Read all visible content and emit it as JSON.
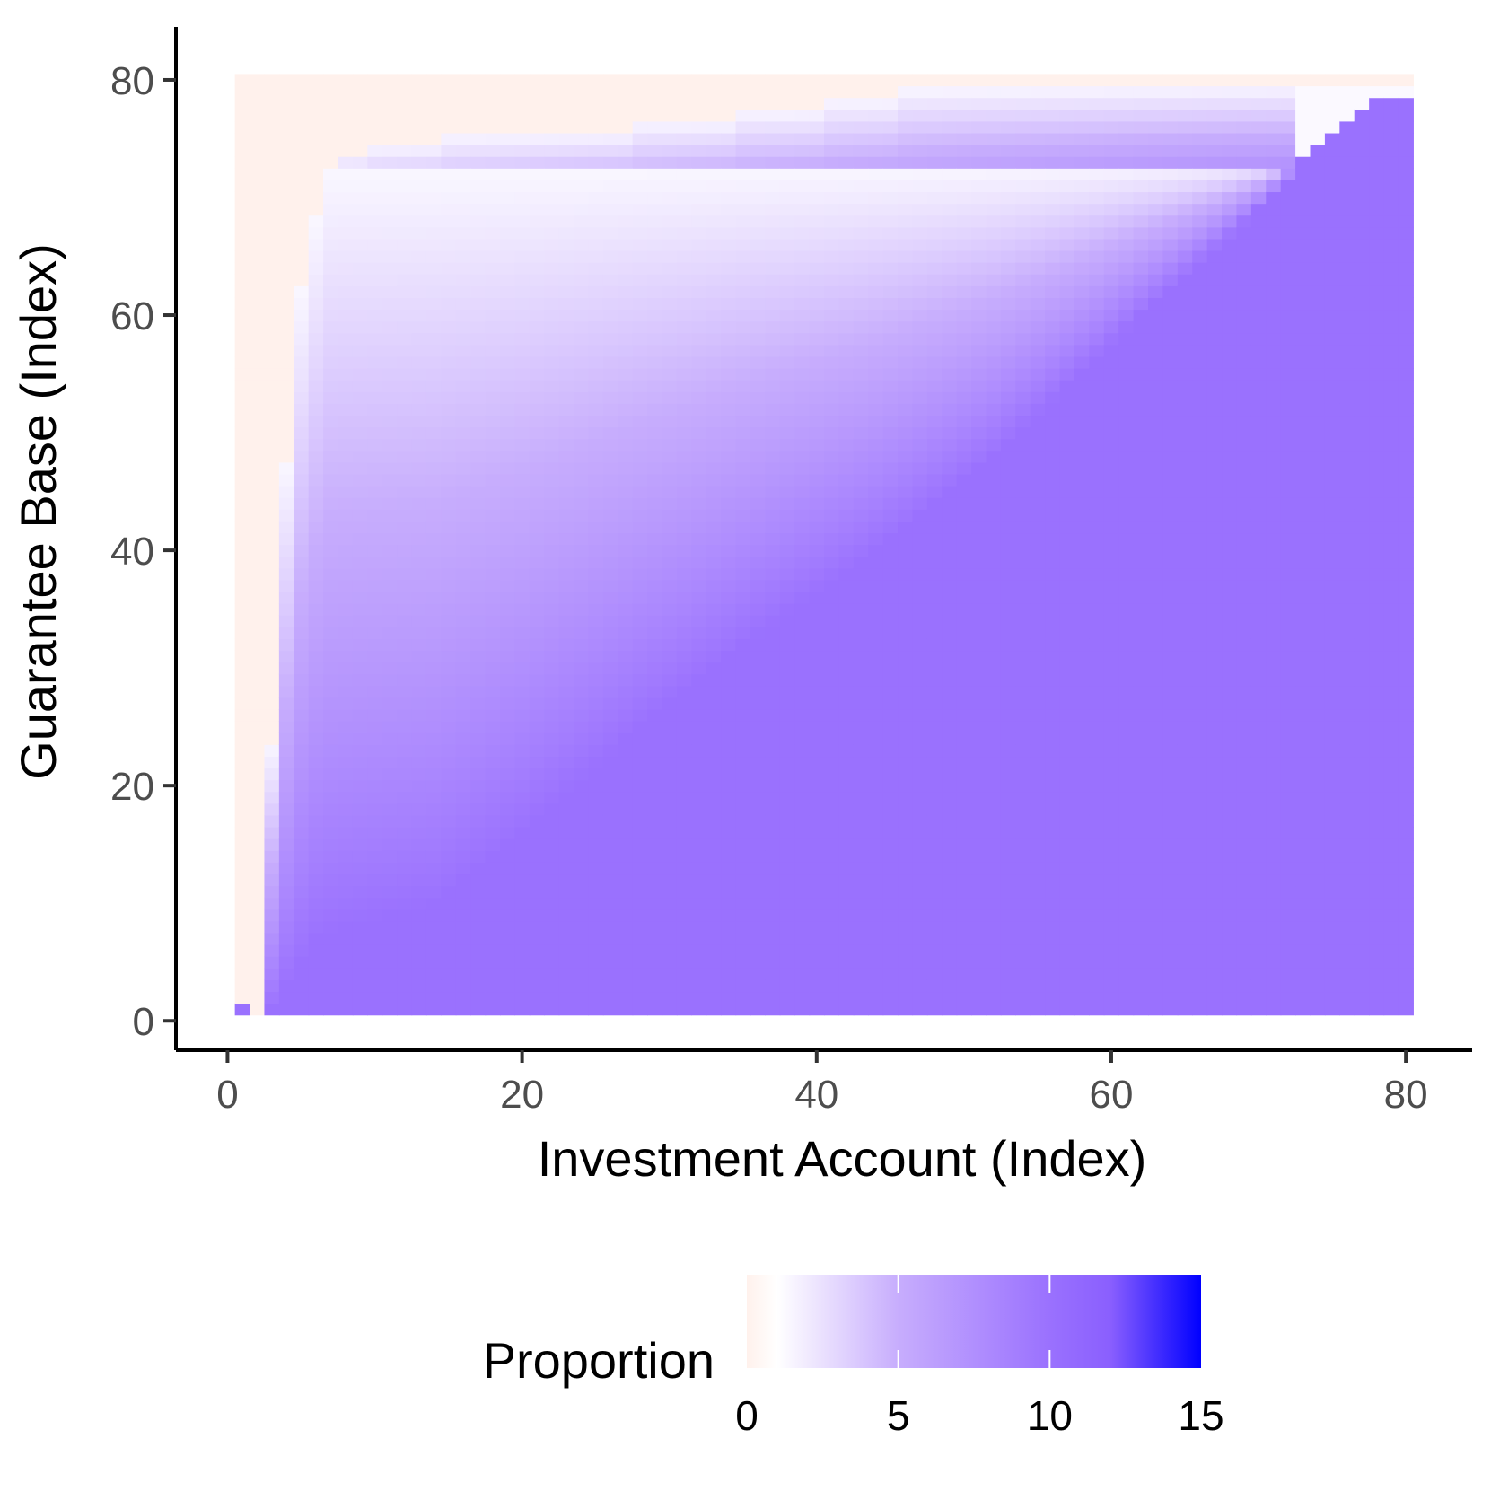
{
  "chart_data": {
    "type": "heatmap",
    "xlabel": "Investment Account (Index)",
    "ylabel": "Guarantee Base (Index)",
    "x_range": [
      1,
      80
    ],
    "y_range": [
      1,
      80
    ],
    "xlim": [
      -3.5,
      84.5
    ],
    "ylim": [
      -2.5,
      84.5
    ],
    "x_ticks": [
      0,
      20,
      40,
      60,
      80
    ],
    "y_ticks": [
      0,
      20,
      40,
      60,
      80
    ],
    "x_tick_labels": [
      "0",
      "20",
      "40",
      "60",
      "80"
    ],
    "y_tick_labels": [
      "0",
      "20",
      "40",
      "60",
      "80"
    ],
    "grid": false,
    "legend": {
      "title": "Proportion",
      "position": "bottom",
      "range": [
        0,
        15
      ],
      "ticks": [
        0,
        5,
        10,
        15
      ],
      "tick_labels": [
        "0",
        "5",
        "10",
        "15"
      ],
      "colors": [
        {
          "value": 0,
          "color": "#fff1ec"
        },
        {
          "value": 1,
          "color": "#ffffff"
        },
        {
          "value": 5,
          "color": "#c7adfd"
        },
        {
          "value": 10,
          "color": "#9a71fe"
        },
        {
          "value": 12,
          "color": "#8a5ffe"
        },
        {
          "value": 15,
          "color": "#0000ff"
        }
      ]
    },
    "regions": {
      "zero_value": 0,
      "saturated_value": 10,
      "zero_boundary_by_column": [
        [
          1,
          1
        ],
        [
          2,
          1
        ],
        [
          3,
          24
        ],
        [
          4,
          48
        ],
        [
          5,
          63
        ],
        [
          6,
          69
        ],
        [
          7,
          73
        ],
        [
          8,
          74
        ],
        [
          10,
          75
        ],
        [
          15,
          76
        ],
        [
          28,
          77
        ],
        [
          35,
          78
        ],
        [
          41,
          79
        ],
        [
          46,
          80
        ]
      ],
      "saturated_boundary_by_column": [
        [
          3,
          1
        ],
        [
          4,
          3
        ],
        [
          5,
          5
        ],
        [
          6,
          7
        ],
        [
          8,
          8
        ],
        [
          14,
          10
        ],
        [
          20,
          16
        ],
        [
          28,
          25
        ],
        [
          35,
          32
        ],
        [
          44,
          40
        ],
        [
          52,
          48
        ],
        [
          62,
          60
        ],
        [
          70,
          69
        ],
        [
          73,
          73
        ],
        [
          75,
          75
        ],
        [
          78,
          78
        ]
      ],
      "top_band_rows": [
        73,
        80
      ],
      "high_value_patches": [
        {
          "x": 1,
          "y": 1,
          "value": 10
        }
      ]
    }
  }
}
